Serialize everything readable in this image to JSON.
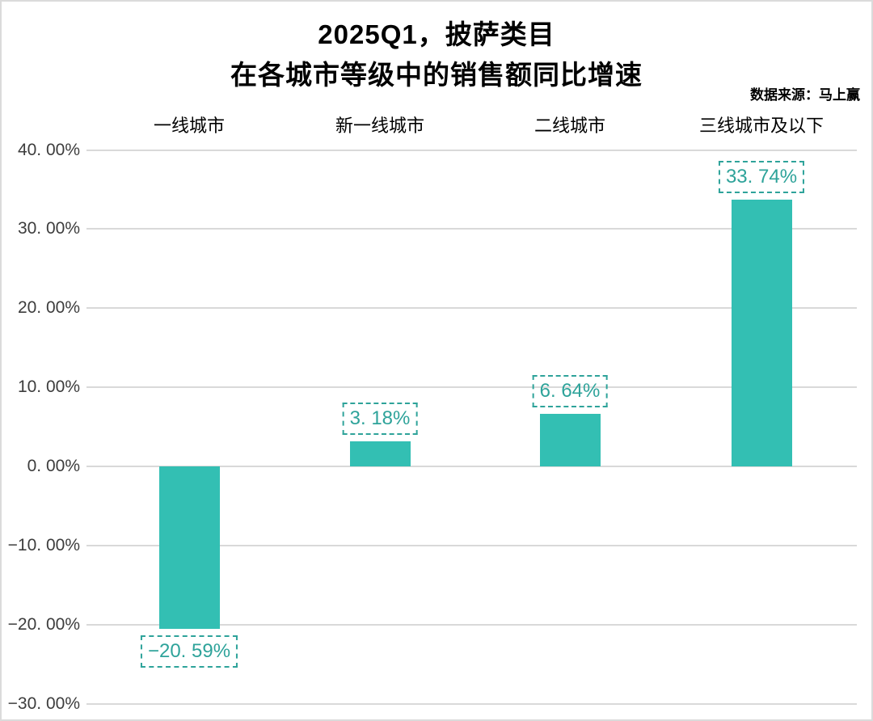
{
  "title": {
    "line1": "2025Q1，披萨类目",
    "line2": "在各城市等级中的销售额同比增速"
  },
  "source": {
    "text": "数据来源：马上赢"
  },
  "colors": {
    "bar": "#33BFB3",
    "value_label": "#2EA39A",
    "gridline": "#D9D9D9",
    "axis_text": "#3D3D3D",
    "title_text": "#000000",
    "frame_border": "#DBDBDB"
  },
  "y_axis": {
    "ticks": [
      {
        "label": "40. 00%",
        "value": 40
      },
      {
        "label": "30. 00%",
        "value": 30
      },
      {
        "label": "20. 00%",
        "value": 20
      },
      {
        "label": "10. 00%",
        "value": 10
      },
      {
        "label": "0. 00%",
        "value": 0
      },
      {
        "label": "−10. 00%",
        "value": -10
      },
      {
        "label": "−20. 00%",
        "value": -20
      },
      {
        "label": "−30. 00%",
        "value": -30
      }
    ]
  },
  "categories": [
    {
      "name": "一线城市",
      "value": -20.59,
      "value_label": "−20. 59%"
    },
    {
      "name": "新一线城市",
      "value": 3.18,
      "value_label": "3. 18%"
    },
    {
      "name": "二线城市",
      "value": 6.64,
      "value_label": "6. 64%"
    },
    {
      "name": "三线城市及以下",
      "value": 33.74,
      "value_label": "33. 74%"
    }
  ],
  "chart_data": {
    "type": "bar",
    "title": "2025Q1，披萨类目 在各城市等级中的销售额同比增速",
    "categories": [
      "一线城市",
      "新一线城市",
      "二线城市",
      "三线城市及以下"
    ],
    "values": [
      -20.59,
      3.18,
      6.64,
      33.74
    ],
    "data_labels": [
      "−20. 59%",
      "3. 18%",
      "6. 64%",
      "33. 74%"
    ],
    "xlabel": "",
    "ylabel": "",
    "ylim": [
      -30,
      40
    ],
    "y_tick_step": 10,
    "y_tick_format": "0.00%",
    "grid": true,
    "legend": false,
    "bar_color": "#33BFB3",
    "category_label_position": "top",
    "value_label_style": "dash-dot-box",
    "source": "数据来源：马上赢"
  }
}
